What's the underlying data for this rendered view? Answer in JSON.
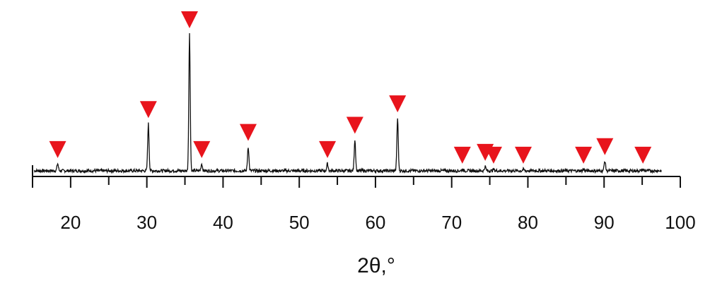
{
  "chart_data": {
    "type": "line",
    "title": "",
    "xlabel": "2θ,°",
    "ylabel": "",
    "xlim": [
      15,
      100
    ],
    "ylim": [
      0,
      100
    ],
    "grid": false,
    "legend": "none",
    "xticks": [
      20,
      30,
      40,
      50,
      60,
      70,
      80,
      90,
      100
    ],
    "xtick_labels": [
      "20",
      "30",
      "40",
      "50",
      "60",
      "70",
      "80",
      "90",
      "100"
    ],
    "baseline": 4,
    "peaks": [
      {
        "x": 18.3,
        "y": 9
      },
      {
        "x": 30.2,
        "y": 37
      },
      {
        "x": 35.6,
        "y": 100
      },
      {
        "x": 37.2,
        "y": 9
      },
      {
        "x": 43.3,
        "y": 21
      },
      {
        "x": 53.7,
        "y": 9
      },
      {
        "x": 57.3,
        "y": 26
      },
      {
        "x": 62.9,
        "y": 41
      },
      {
        "x": 71.4,
        "y": 5
      },
      {
        "x": 74.4,
        "y": 7
      },
      {
        "x": 75.5,
        "y": 5
      },
      {
        "x": 79.4,
        "y": 5
      },
      {
        "x": 87.3,
        "y": 5
      },
      {
        "x": 90.1,
        "y": 11
      },
      {
        "x": 95.1,
        "y": 5
      }
    ],
    "marker_color": "#e8141c",
    "line_color": "#111111"
  }
}
